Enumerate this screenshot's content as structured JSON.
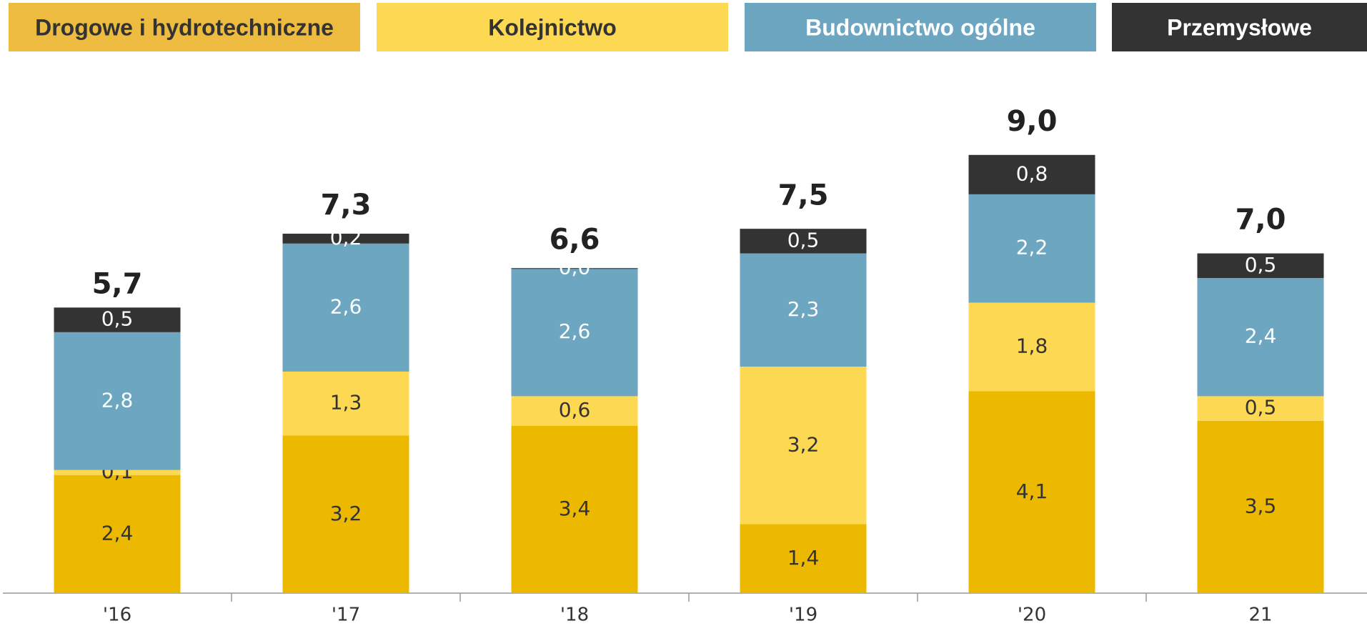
{
  "chart_data": {
    "type": "stacked_bar",
    "categories": [
      "'16",
      "'17",
      "'18",
      "'19",
      "'20",
      "21"
    ],
    "series": [
      {
        "name": "Drogowe i hydrotechniczne",
        "color": "#ecb900",
        "legend_color": "#ecbb40",
        "values": [
          2.4,
          3.2,
          3.4,
          1.4,
          4.1,
          3.5
        ],
        "value_labels": [
          "2,4",
          "3,2",
          "3,4",
          "1,4",
          "4,1",
          "3,5"
        ]
      },
      {
        "name": "Kolejnictwo",
        "color": "#fdd853",
        "legend_color": "#fdd853",
        "values": [
          0.1,
          1.3,
          0.6,
          3.2,
          1.8,
          0.5
        ],
        "value_labels": [
          "0,1",
          "1,3",
          "0,6",
          "3,2",
          "1,8",
          "0,5"
        ]
      },
      {
        "name": "Budownictwo ogólne",
        "color": "#6ca6c1",
        "legend_color": "#6ca6c1",
        "values": [
          2.8,
          2.6,
          2.6,
          2.3,
          2.2,
          2.4
        ],
        "value_labels": [
          "2,8",
          "2,6",
          "2,6",
          "2,3",
          "2,2",
          "2,4"
        ]
      },
      {
        "name": "Przemysłowe",
        "color": "#333333",
        "legend_color": "#333333",
        "values": [
          0.5,
          0.2,
          0.0,
          0.5,
          0.8,
          0.5
        ],
        "value_labels": [
          "0,5",
          "0,2",
          "0,0",
          "0,5",
          "0,8",
          "0,5"
        ]
      }
    ],
    "totals": [
      5.7,
      7.3,
      6.6,
      7.5,
      9.0,
      7.0
    ],
    "total_labels": [
      "5,7",
      "7,3",
      "6,6",
      "7,5",
      "9,0",
      "7,0"
    ]
  }
}
